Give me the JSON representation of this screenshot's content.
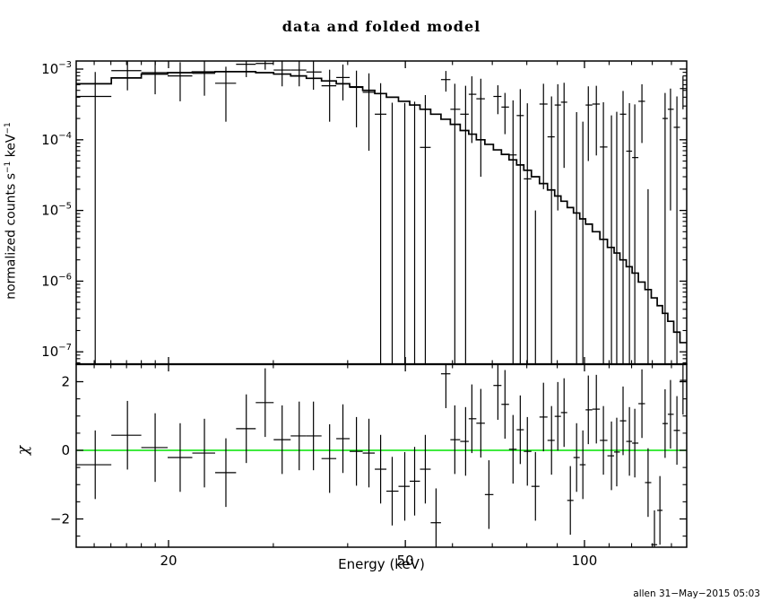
{
  "page": {
    "title": "data and folded model",
    "stamp": "allen 31−May−2015 05:03",
    "background_color": "#ffffff",
    "line_color": "#000000",
    "zero_line_color": "#00e400"
  },
  "axes": {
    "x_label": "Energy (keV)",
    "x_scale": "log",
    "x_range_keV": [
      14.0,
      148.5
    ],
    "x_major_ticks": [
      20,
      50,
      100
    ],
    "x_major_tick_labels": [
      "20",
      "50",
      "100"
    ],
    "x_minor_ticks": [
      15,
      16,
      17,
      18,
      19,
      30,
      40,
      60,
      70,
      80,
      90,
      110,
      120,
      130,
      140
    ],
    "top_y_label_parts": {
      "pre": "normalized counts s",
      "sup1": "−1",
      "mid": " keV",
      "sup2": "−1"
    },
    "top_y_scale": "log",
    "top_y_range": [
      6.7e-08,
      0.0013
    ],
    "top_y_major_tick_exponents": [
      -3,
      -4,
      -5,
      -6,
      -7
    ],
    "top_y_tick_base": "10",
    "chi_label": "χ",
    "bottom_y_scale": "linear",
    "bottom_y_range": [
      -2.8,
      2.51
    ],
    "bottom_y_major_ticks": [
      {
        "value": 2,
        "label": "2"
      },
      {
        "value": 0,
        "label": "0"
      },
      {
        "value": -2,
        "label": "−2"
      }
    ],
    "bottom_y_minor_ticks": [
      -2.5,
      -1.5,
      -1,
      -0.5,
      0.5,
      1,
      1.5,
      2.5
    ]
  },
  "chart_data": {
    "type": "scatter",
    "subtype": "x-ray-spectrum-with-step-model-and-chi-residuals",
    "title": "data and folded model",
    "xlabel": "Energy (keV)",
    "panels": [
      {
        "name": "spectrum",
        "ylabel": "normalized counts s−1 keV−1",
        "xscale": "log",
        "yscale": "log",
        "xlim": [
          14.0,
          148.5
        ],
        "ylim": [
          6.7e-08,
          0.0013
        ],
        "series": [
          "data (crosses with error bars)",
          "folded model (step histogram)"
        ]
      },
      {
        "name": "residuals",
        "ylabel": "χ",
        "xscale": "log",
        "yscale": "linear",
        "xlim": [
          14.0,
          148.5
        ],
        "ylim": [
          -2.8,
          2.51
        ],
        "series": [
          "chi residuals (crosses, ±1 error bars)",
          "zero line (green)"
        ]
      }
    ],
    "bins": {
      "e_keV": [
        15.06,
        17.06,
        18.99,
        20.92,
        22.98,
        24.97,
        27.02,
        29.07,
        31.04,
        33.16,
        35.04,
        37.3,
        39.27,
        41.38,
        43.43,
        45.44,
        47.52,
        49.89,
        51.83,
        54.02,
        56.31,
        58.5,
        60.55,
        63.13,
        64.68,
        66.96,
        69.09,
        71.53,
        73.52,
        75.85,
        78.0,
        80.17,
        82.72,
        85.33,
        88.03,
        90.2,
        92.41,
        94.68,
        97.0,
        99.38,
        101.5,
        104.7,
        107.6,
        111.0,
        113.3,
        116.1,
        119.0,
        121.5,
        124.9,
        127.9,
        131.1,
        133.9,
        136.6,
        139.5,
        143.0,
        146.4
      ],
      "data_counts": [
        0.00041,
        0.00095,
        0.00089,
        0.0008,
        0.00087,
        0.00063,
        0.00117,
        0.0012,
        0.00097,
        0.00097,
        0.00091,
        0.00058,
        0.00076,
        0.00055,
        0.00047,
        0.00023,
        -1.6e-05,
        -1.8e-05,
        -5e-06,
        7.8e-05,
        -0.00051,
        0.00071,
        0.00027,
        0.00023,
        0.00044,
        0.00038,
        -0.00037,
        0.00041,
        0.00029,
        6.1e-05,
        0.00022,
        2.8e-05,
        -0.00029,
        0.00032,
        0.00011,
        0.00031,
        0.00034,
        -0.00043,
        -5.4e-05,
        -0.00012,
        0.00031,
        0.00032,
        7.9e-05,
        -3.9e-05,
        -1.1e-05,
        0.00023,
        6.9e-05,
        5.6e-05,
        0.00035,
        -0.00024,
        -0.00071,
        -0.00046,
        0.0002,
        0.00027,
        0.00015,
        0.00053
      ],
      "data_sigma": [
        0.0005,
        0.00045,
        0.00045,
        0.00045,
        0.00045,
        0.00045,
        0.0004,
        0.00022,
        0.0004,
        0.0004,
        0.0004,
        0.0004,
        0.0004,
        0.0004,
        0.0004,
        0.0004,
        0.00035,
        0.00035,
        0.00035,
        0.00035,
        0.00035,
        0.00023,
        0.00035,
        0.00035,
        0.00035,
        0.00035,
        0.00035,
        0.00018,
        0.00017,
        0.0003,
        0.0003,
        0.0003,
        0.0003,
        0.0003,
        0.0003,
        0.0003,
        0.0003,
        0.0003,
        0.0003,
        0.0003,
        0.00026,
        0.00026,
        0.00026,
        0.00026,
        0.00026,
        0.00026,
        0.00026,
        0.00026,
        0.00026,
        0.00026,
        0.00026,
        0.00026,
        0.00026,
        0.00026,
        0.00026,
        0.00026
      ],
      "model_counts": [
        0.00062,
        0.00075,
        0.00085,
        0.00089,
        0.00091,
        0.00092,
        0.00092,
        0.00089,
        0.00085,
        0.0008,
        0.00074,
        0.00068,
        0.00062,
        0.00056,
        0.0005,
        0.00045,
        0.0004,
        0.00035,
        0.00031,
        0.00027,
        0.00023,
        0.000195,
        0.000165,
        0.000135,
        0.00012,
        0.0001,
        8.6e-05,
        7.2e-05,
        6.2e-05,
        5.2e-05,
        4.4e-05,
        3.7e-05,
        3e-05,
        2.4e-05,
        1.95e-05,
        1.6e-05,
        1.35e-05,
        1.1e-05,
        9.2e-06,
        7.6e-06,
        6.4e-06,
        5e-06,
        3.9e-06,
        3e-06,
        2.5e-06,
        2e-06,
        1.6e-06,
        1.3e-06,
        9.7e-07,
        7.6e-07,
        5.8e-07,
        4.5e-07,
        3.5e-07,
        2.7e-07,
        1.9e-07,
        1.35e-07
      ],
      "chi": [
        -0.42,
        0.44,
        0.08,
        -0.21,
        -0.08,
        -0.65,
        0.63,
        1.39,
        0.31,
        0.42,
        0.42,
        -0.24,
        0.34,
        -0.03,
        -0.08,
        -0.55,
        -1.19,
        -1.05,
        -0.9,
        -0.55,
        -2.11,
        2.23,
        0.31,
        0.26,
        0.92,
        0.79,
        -1.29,
        1.89,
        1.34,
        0.03,
        0.6,
        -0.03,
        -1.05,
        0.97,
        0.29,
        0.99,
        1.1,
        -1.46,
        -0.21,
        -0.42,
        1.18,
        1.2,
        0.29,
        -0.16,
        -0.05,
        0.86,
        0.26,
        0.21,
        1.36,
        -0.94,
        -2.75,
        -1.75,
        0.78,
        1.05,
        0.58,
        2.04
      ],
      "chi_err": 1.0
    }
  }
}
